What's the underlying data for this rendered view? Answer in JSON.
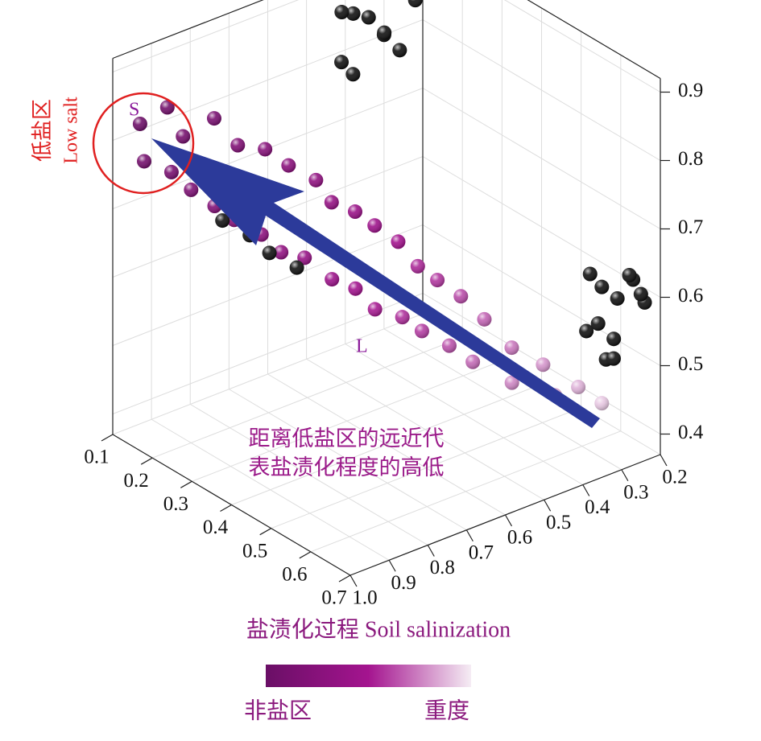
{
  "chart_data": {
    "type": "scatter3d",
    "xlim": [
      0.1,
      0.7
    ],
    "xticks": [
      0.1,
      0.2,
      0.3,
      0.4,
      0.5,
      0.6,
      0.7
    ],
    "ylim": [
      0.2,
      1.0
    ],
    "yticks": [
      0.2,
      0.3,
      0.4,
      0.5,
      0.6,
      0.7,
      0.8,
      0.9,
      {
        "value": 1.0,
        "label": "1.0"
      }
    ],
    "zlim": [
      0.37,
      0.92
    ],
    "zticks": [
      0.4,
      0.5,
      0.6,
      0.7,
      0.8,
      0.9
    ],
    "axis_title": "盐渍化过程 Soil salinization",
    "annotations": {
      "low_salt_cn": "低盐区",
      "low_salt_en": "Low salt",
      "s": "S",
      "l": "L",
      "note_line1": "距离低盐区的远近代",
      "note_line2": "表盐渍化程度的高低"
    },
    "colorbar": {
      "colors": [
        "#6a0f66",
        "#a4148f",
        "#f5edf4"
      ],
      "low_label": "非盐区",
      "high_label": "重度"
    },
    "series": [
      {
        "color_by": "x",
        "x": [
          0.12,
          0.14,
          0.15,
          0.16,
          0.17,
          0.18,
          0.2,
          0.22,
          0.23,
          0.24,
          0.25,
          0.27,
          0.28,
          0.3,
          0.31,
          0.32,
          0.33,
          0.35,
          0.36,
          0.37,
          0.39,
          0.4,
          0.41,
          0.43,
          0.44,
          0.45,
          0.46,
          0.48,
          0.49,
          0.51,
          0.52,
          0.54,
          0.56,
          0.58,
          0.6,
          0.62,
          0.65
        ],
        "y": [
          0.95,
          0.9,
          0.97,
          0.88,
          0.92,
          0.82,
          0.9,
          0.8,
          0.87,
          0.75,
          0.84,
          0.72,
          0.8,
          0.68,
          0.78,
          0.66,
          0.74,
          0.63,
          0.7,
          0.6,
          0.67,
          0.57,
          0.64,
          0.55,
          0.6,
          0.52,
          0.57,
          0.49,
          0.53,
          0.46,
          0.5,
          0.42,
          0.44,
          0.38,
          0.37,
          0.33,
          0.3
        ],
        "z": [
          0.82,
          0.84,
          0.78,
          0.8,
          0.76,
          0.82,
          0.74,
          0.79,
          0.72,
          0.78,
          0.7,
          0.76,
          0.68,
          0.74,
          0.66,
          0.71,
          0.65,
          0.7,
          0.62,
          0.68,
          0.61,
          0.66,
          0.58,
          0.63,
          0.57,
          0.61,
          0.55,
          0.59,
          0.53,
          0.56,
          0.51,
          0.52,
          0.48,
          0.5,
          0.46,
          0.47,
          0.45
        ]
      },
      {
        "color": "#111111",
        "x": [
          0.1,
          0.11,
          0.12,
          0.12,
          0.13,
          0.14,
          0.11,
          0.13,
          0.1,
          0.14,
          0.24,
          0.27,
          0.3,
          0.33,
          0.65,
          0.66,
          0.67,
          0.68,
          0.69,
          0.7,
          0.66,
          0.68,
          0.7,
          0.67,
          0.69,
          0.64
        ],
        "y": [
          0.3,
          0.35,
          0.28,
          0.4,
          0.33,
          0.45,
          0.42,
          0.25,
          0.38,
          0.3,
          0.86,
          0.82,
          0.8,
          0.76,
          0.3,
          0.27,
          0.33,
          0.25,
          0.31,
          0.28,
          0.35,
          0.22,
          0.34,
          0.29,
          0.24,
          0.32
        ],
        "z": [
          0.8,
          0.84,
          0.78,
          0.86,
          0.82,
          0.88,
          0.79,
          0.85,
          0.76,
          0.9,
          0.7,
          0.68,
          0.66,
          0.64,
          0.62,
          0.6,
          0.58,
          0.63,
          0.56,
          0.65,
          0.57,
          0.59,
          0.54,
          0.52,
          0.61,
          0.64
        ]
      }
    ]
  }
}
